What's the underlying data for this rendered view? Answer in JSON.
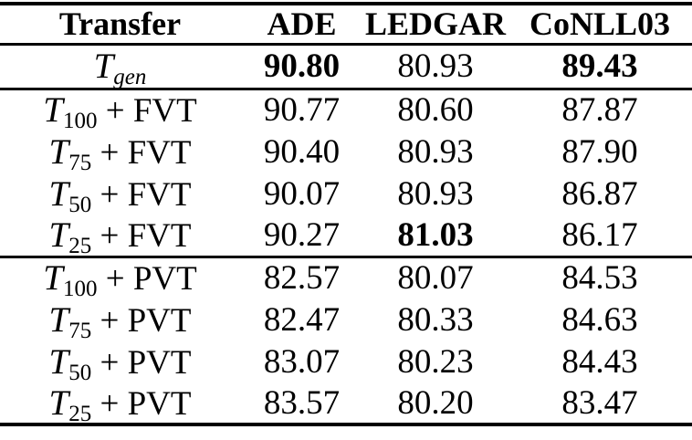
{
  "page": {
    "background": "#ffffff",
    "text_color": "#000000",
    "rule_color": "#000000"
  },
  "table": {
    "columns": [
      {
        "label": "Transfer"
      },
      {
        "label": "ADE"
      },
      {
        "label": "LEDGAR"
      },
      {
        "label": "CoNLL03"
      }
    ],
    "rows": [
      {
        "transfer": {
          "symbol": "T",
          "subscript": "gen",
          "subscript_italic": true,
          "suffix": ""
        },
        "values": [
          "90.80",
          "80.93",
          "89.43"
        ],
        "bold": [
          true,
          false,
          true
        ],
        "rule_after": true
      },
      {
        "transfer": {
          "symbol": "T",
          "subscript": "100",
          "subscript_italic": false,
          "suffix": " + FVT"
        },
        "values": [
          "90.77",
          "80.60",
          "87.87"
        ],
        "bold": [
          false,
          false,
          false
        ],
        "rule_after": false
      },
      {
        "transfer": {
          "symbol": "T",
          "subscript": "75",
          "subscript_italic": false,
          "suffix": " + FVT"
        },
        "values": [
          "90.40",
          "80.93",
          "87.90"
        ],
        "bold": [
          false,
          false,
          false
        ],
        "rule_after": false
      },
      {
        "transfer": {
          "symbol": "T",
          "subscript": "50",
          "subscript_italic": false,
          "suffix": " + FVT"
        },
        "values": [
          "90.07",
          "80.93",
          "86.87"
        ],
        "bold": [
          false,
          false,
          false
        ],
        "rule_after": false
      },
      {
        "transfer": {
          "symbol": "T",
          "subscript": "25",
          "subscript_italic": false,
          "suffix": " + FVT"
        },
        "values": [
          "90.27",
          "81.03",
          "86.17"
        ],
        "bold": [
          false,
          true,
          false
        ],
        "rule_after": true
      },
      {
        "transfer": {
          "symbol": "T",
          "subscript": "100",
          "subscript_italic": false,
          "suffix": " + PVT"
        },
        "values": [
          "82.57",
          "80.07",
          "84.53"
        ],
        "bold": [
          false,
          false,
          false
        ],
        "rule_after": false
      },
      {
        "transfer": {
          "symbol": "T",
          "subscript": "75",
          "subscript_italic": false,
          "suffix": " + PVT"
        },
        "values": [
          "82.47",
          "80.33",
          "84.63"
        ],
        "bold": [
          false,
          false,
          false
        ],
        "rule_after": false
      },
      {
        "transfer": {
          "symbol": "T",
          "subscript": "50",
          "subscript_italic": false,
          "suffix": " + PVT"
        },
        "values": [
          "83.07",
          "80.23",
          "84.43"
        ],
        "bold": [
          false,
          false,
          false
        ],
        "rule_after": false
      },
      {
        "transfer": {
          "symbol": "T",
          "subscript": "25",
          "subscript_italic": false,
          "suffix": " + PVT"
        },
        "values": [
          "83.57",
          "80.20",
          "83.47"
        ],
        "bold": [
          false,
          false,
          false
        ],
        "rule_after": false
      }
    ]
  }
}
